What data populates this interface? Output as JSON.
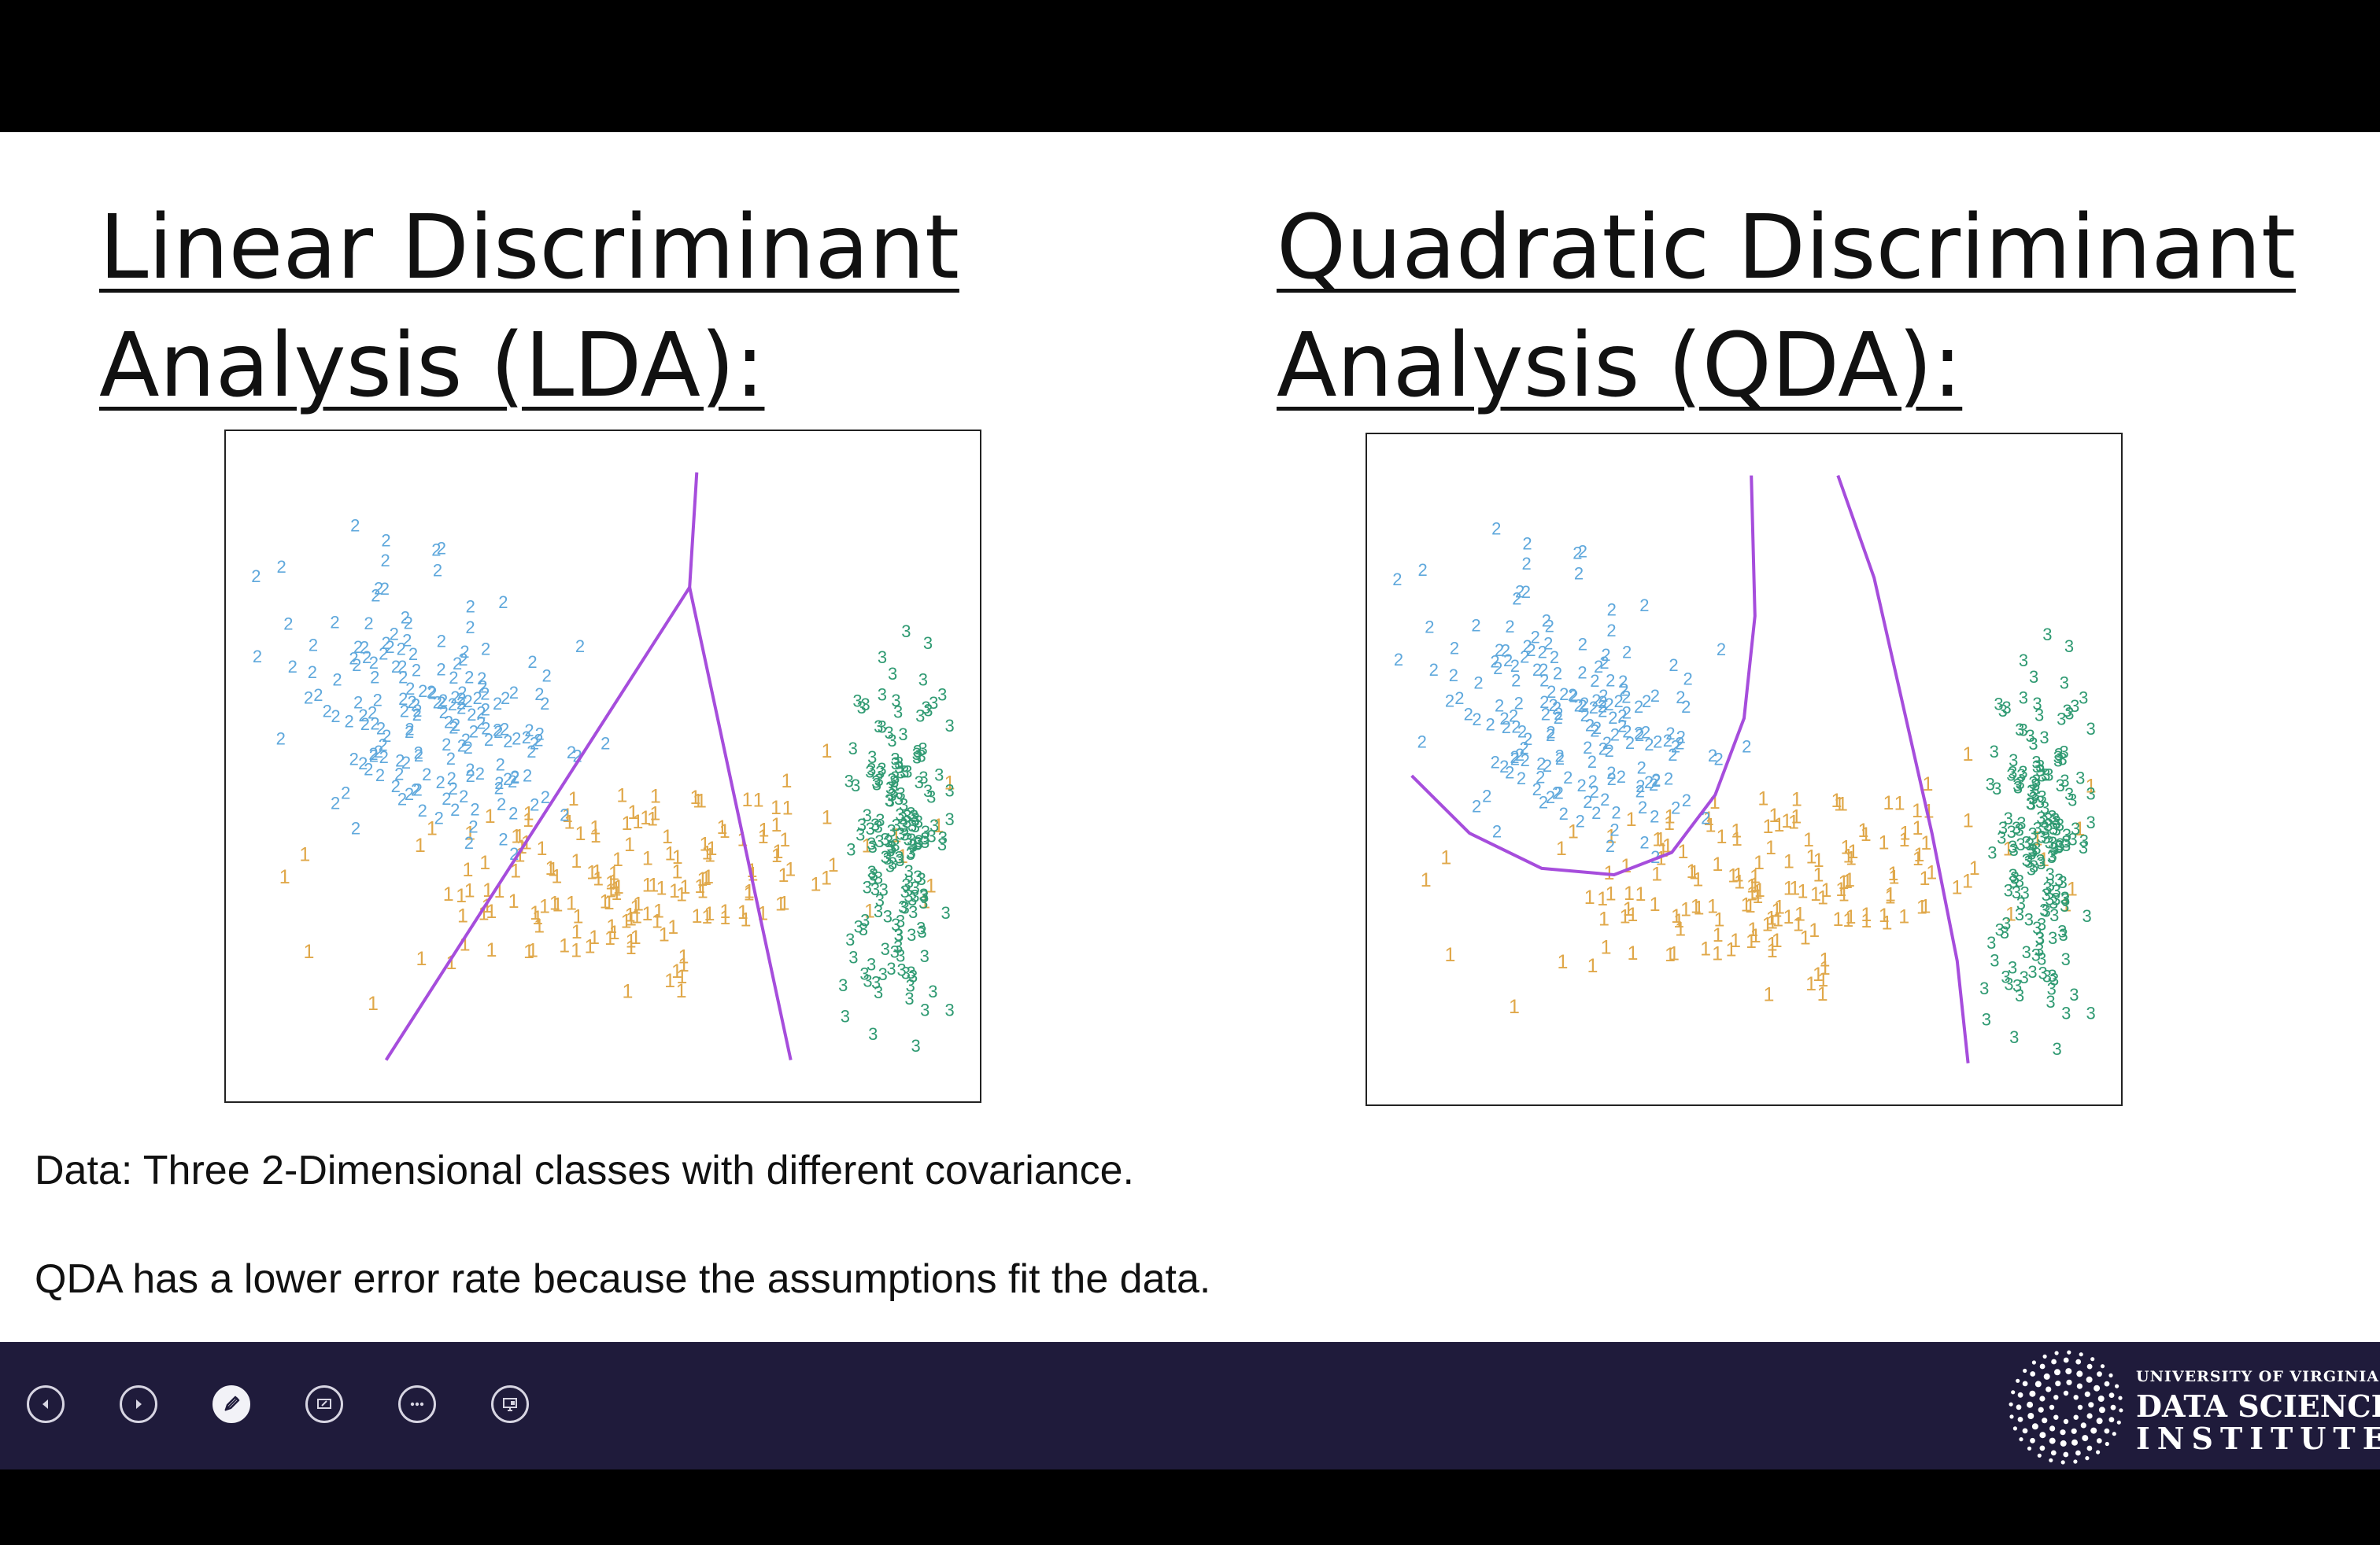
{
  "slide": {
    "left_title": [
      "Linear Discriminant",
      "Analysis (LDA):"
    ],
    "right_title": [
      "Quadratic Discriminant",
      "Analysis (QDA):"
    ],
    "caption_1": "Data: Three 2-Dimensional classes with different covariance.",
    "caption_2": "QDA has a lower error rate because the assumptions fit the data."
  },
  "controls": {
    "previous_icon": "previous-slide-icon",
    "next_icon": "next-slide-icon",
    "pen_icon": "pen-tool-icon",
    "slides_icon": "see-all-slides-icon",
    "more_icon": "more-options-icon",
    "monitor_icon": "presenter-view-icon"
  },
  "logo": {
    "line1": "UNIVERSITY OF VIRGINIA",
    "line2": "DATA SCIENCE",
    "line3": "INSTITUTE",
    "mark_icon": "dotted-starburst-logo-icon"
  },
  "colors": {
    "class_1": "#e0a84a",
    "class_2": "#5fa8dc",
    "class_3": "#2f9a72",
    "boundary": "#a64ddc",
    "control_bar": "#1f1b3b"
  },
  "chart_data": [
    {
      "type": "scatter",
      "title": "",
      "xlabel": "",
      "ylabel": "",
      "grid": false,
      "xlim": [
        0,
        10
      ],
      "ylim": [
        0,
        10
      ],
      "markers": "class digit glyphs",
      "series": [
        {
          "name": "1",
          "color": "#e0a84a",
          "center": [
            5.3,
            3.1
          ],
          "spread": [
            1.8,
            0.7
          ],
          "tilt": 0.12,
          "count": 170
        },
        {
          "name": "2",
          "color": "#5fa8dc",
          "center": [
            2.6,
            5.7
          ],
          "spread": [
            0.95,
            1.0
          ],
          "tilt": -0.2,
          "count": 180
        },
        {
          "name": "3",
          "color": "#2f9a72",
          "center": [
            9.1,
            3.8
          ],
          "spread": [
            0.35,
            1.35
          ],
          "tilt": 0.0,
          "count": 180
        }
      ],
      "decision_boundaries": [
        [
          [
            6.3,
            9.6
          ],
          [
            6.2,
            7.8
          ]
        ],
        [
          [
            6.2,
            7.8
          ],
          [
            2.0,
            0.4
          ]
        ],
        [
          [
            6.2,
            7.8
          ],
          [
            7.6,
            0.4
          ]
        ]
      ]
    },
    {
      "type": "scatter",
      "title": "",
      "xlabel": "",
      "ylabel": "",
      "grid": false,
      "xlim": [
        0,
        10
      ],
      "ylim": [
        0,
        10
      ],
      "markers": "class digit glyphs",
      "series_same_as_left": true,
      "decision_boundaries": [
        [
          [
            0.4,
            4.9
          ],
          [
            1.2,
            4.0
          ],
          [
            2.2,
            3.45
          ],
          [
            3.2,
            3.35
          ],
          [
            4.0,
            3.7
          ],
          [
            4.6,
            4.6
          ],
          [
            5.0,
            5.8
          ],
          [
            5.15,
            7.4
          ],
          [
            5.1,
            9.6
          ]
        ],
        [
          [
            6.3,
            9.6
          ],
          [
            6.8,
            8.0
          ],
          [
            7.2,
            6.0
          ],
          [
            7.6,
            4.0
          ],
          [
            7.95,
            2.0
          ],
          [
            8.1,
            0.4
          ]
        ]
      ]
    }
  ]
}
